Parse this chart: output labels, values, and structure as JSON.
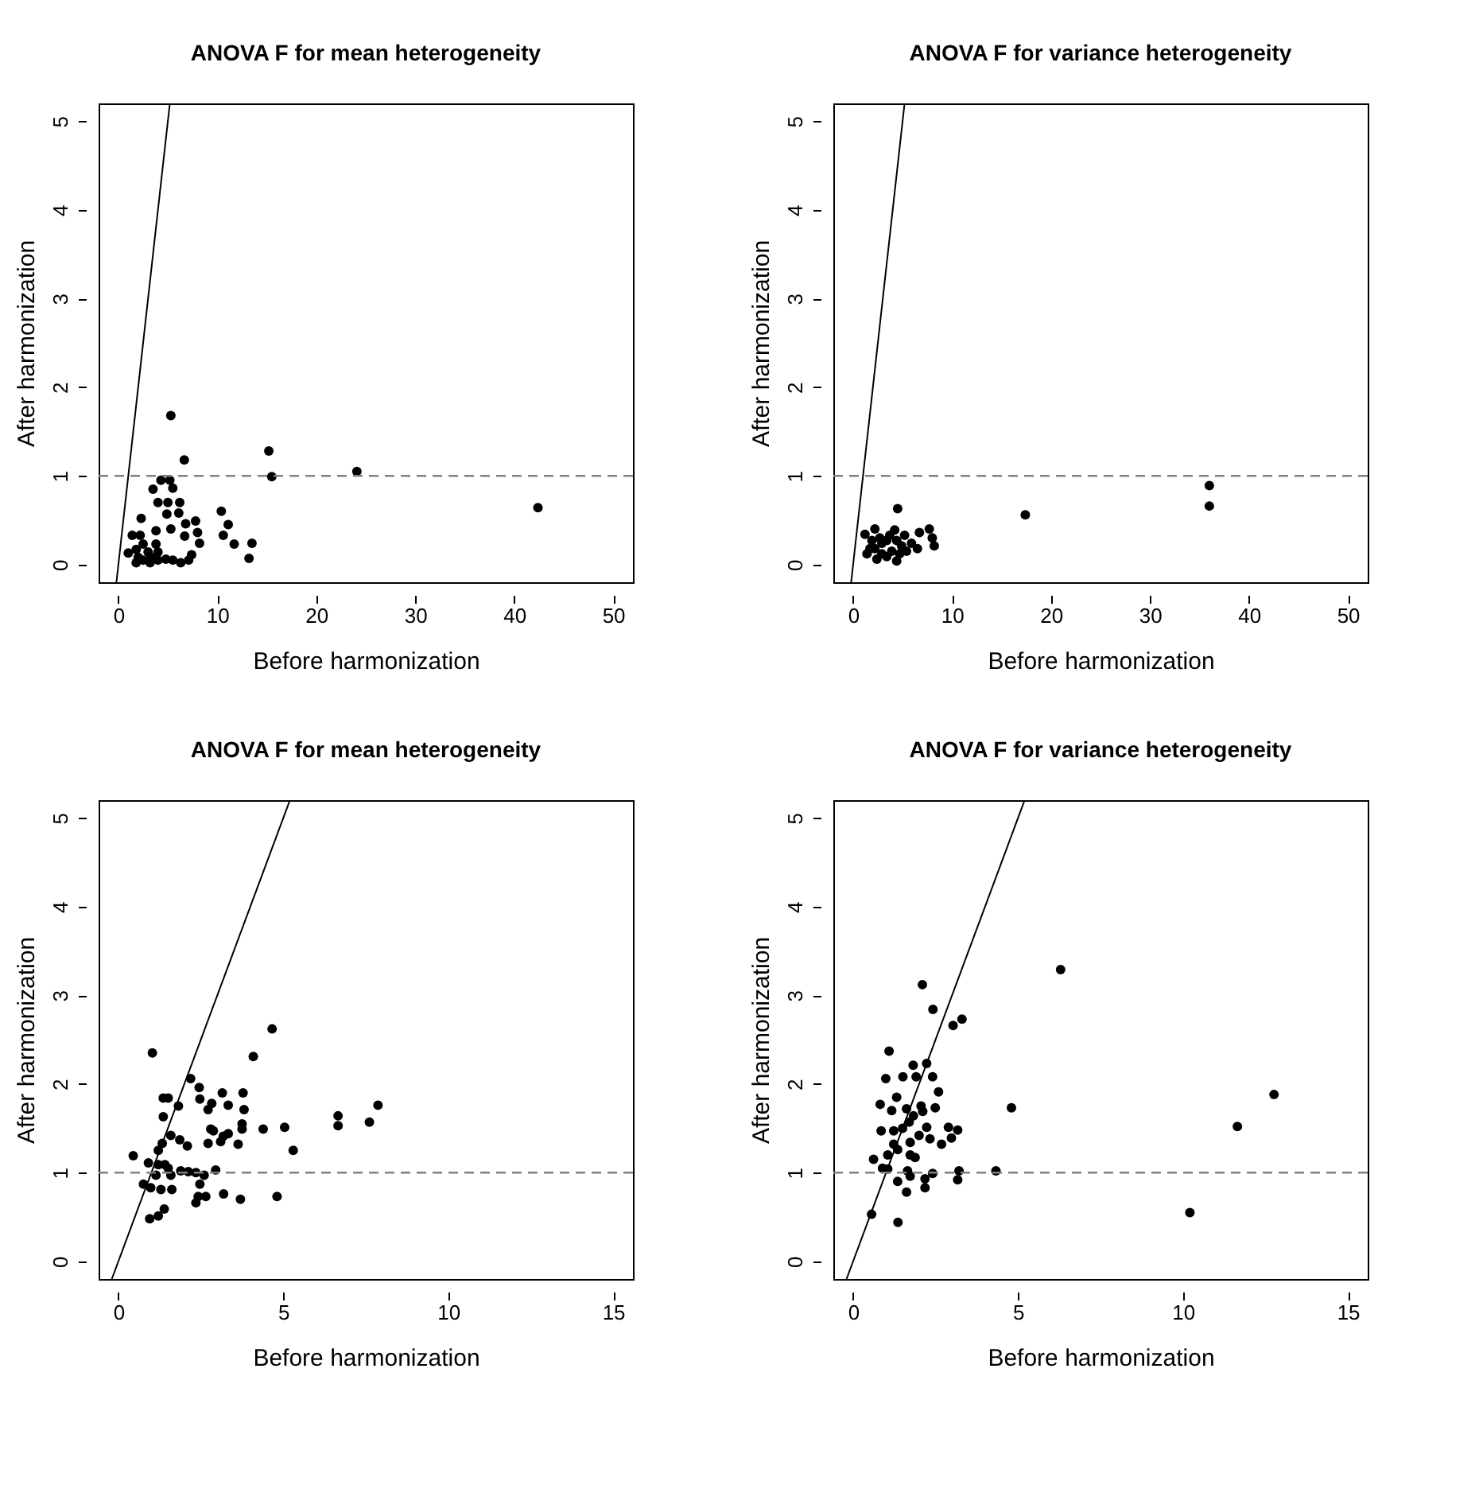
{
  "chart_data": [
    {
      "type": "scatter",
      "title": "ANOVA F for mean heterogeneity",
      "xlabel": "Before harmonization",
      "ylabel": "After harmonization",
      "xlim": [
        -2,
        52
      ],
      "ylim": [
        -0.2,
        5.2
      ],
      "xticks": [
        0,
        10,
        20,
        30,
        40,
        50
      ],
      "yticks": [
        0,
        1,
        2,
        3,
        4,
        5
      ],
      "grid": false,
      "series": [
        {
          "type": "scatter",
          "marker": "circle",
          "color": "#000000",
          "x": [
            5.3,
            6.66,
            15.2,
            15.5,
            24.1,
            42.4,
            10.4,
            10.6,
            11.1,
            11.7,
            13.5,
            13.2,
            4.3,
            5.2,
            3.5,
            5.5,
            4.0,
            5.0,
            6.2,
            4.9,
            6.1,
            6.8,
            7.8,
            5.3,
            6.7,
            8.0,
            8.2,
            2.3,
            3.8,
            1.4,
            2.2,
            1.0,
            1.8,
            2.5,
            3.0,
            3.8,
            1.8,
            2.5,
            3.2,
            4.0,
            4.8,
            5.5,
            6.3,
            7.1,
            7.4,
            2.0,
            3.3,
            4.0
          ],
          "values": [
            1.68,
            1.18,
            1.28,
            0.99,
            1.05,
            0.64,
            0.6,
            0.33,
            0.45,
            0.23,
            0.24,
            0.07,
            0.95,
            0.95,
            0.85,
            0.86,
            0.7,
            0.7,
            0.7,
            0.57,
            0.58,
            0.46,
            0.49,
            0.4,
            0.32,
            0.36,
            0.24,
            0.52,
            0.38,
            0.33,
            0.33,
            0.13,
            0.17,
            0.23,
            0.14,
            0.23,
            0.02,
            0.05,
            0.02,
            0.05,
            0.06,
            0.05,
            0.02,
            0.05,
            0.11,
            0.08,
            0.08,
            0.14
          ]
        },
        {
          "type": "line",
          "marker": "none",
          "color": "#000000",
          "x": [
            -0.2,
            5.2
          ],
          "values": [
            -0.2,
            5.2
          ]
        }
      ],
      "ref_lines": [
        {
          "axis": "y",
          "value": 1,
          "color": "#808080",
          "line_style": "dashed"
        }
      ]
    },
    {
      "type": "scatter",
      "title": "ANOVA F for variance heterogeneity",
      "xlabel": "Before harmonization",
      "ylabel": "After harmonization",
      "xlim": [
        -2,
        52
      ],
      "ylim": [
        -0.2,
        5.2
      ],
      "xticks": [
        0,
        10,
        20,
        30,
        40,
        50
      ],
      "yticks": [
        0,
        1,
        2,
        3,
        4,
        5
      ],
      "grid": false,
      "series": [
        {
          "type": "scatter",
          "marker": "circle",
          "color": "#000000",
          "x": [
            4.5,
            17.4,
            36.0,
            36.0,
            7.7,
            8.2,
            8.0,
            6.7,
            2.2,
            1.2,
            1.4,
            2.2,
            2.9,
            3.7,
            4.4,
            5.2,
            5.9,
            6.5,
            2.4,
            3.4,
            4.4,
            3.9,
            2.9,
            5.4,
            4.9,
            1.9,
            3.4,
            2.7,
            4.2,
            1.7,
            4.7
          ],
          "values": [
            0.63,
            0.56,
            0.89,
            0.66,
            0.4,
            0.21,
            0.3,
            0.36,
            0.4,
            0.34,
            0.12,
            0.18,
            0.24,
            0.33,
            0.27,
            0.33,
            0.24,
            0.18,
            0.06,
            0.09,
            0.04,
            0.15,
            0.12,
            0.15,
            0.21,
            0.27,
            0.27,
            0.3,
            0.39,
            0.18,
            0.12
          ]
        },
        {
          "type": "line",
          "marker": "none",
          "color": "#000000",
          "x": [
            -0.2,
            5.2
          ],
          "values": [
            -0.2,
            5.2
          ]
        }
      ],
      "ref_lines": [
        {
          "axis": "y",
          "value": 1,
          "color": "#808080",
          "line_style": "dashed"
        }
      ]
    },
    {
      "type": "scatter",
      "title": "ANOVA F for mean heterogeneity",
      "xlabel": "Before harmonization",
      "ylabel": "After harmonization",
      "xlim": [
        -0.6,
        15.6
      ],
      "ylim": [
        -0.2,
        5.2
      ],
      "xticks": [
        0,
        5,
        10,
        15
      ],
      "yticks": [
        0,
        1,
        2,
        3,
        4,
        5
      ],
      "grid": false,
      "series": [
        {
          "type": "scatter",
          "marker": "circle",
          "color": "#000000",
          "x": [
            1.03,
            4.66,
            4.09,
            2.19,
            2.45,
            2.47,
            3.15,
            3.78,
            2.83,
            3.33,
            3.81,
            1.36,
            1.51,
            1.82,
            1.36,
            2.72,
            2.8,
            2.88,
            3.33,
            3.18,
            3.1,
            2.72,
            3.63,
            3.75,
            3.75,
            4.39,
            5.04,
            5.3,
            6.66,
            6.66,
            7.61,
            7.87,
            1.59,
            1.86,
            2.09,
            1.33,
            1.21,
            0.45,
            0.91,
            1.21,
            1.41,
            1.51,
            1.59,
            1.14,
            1.89,
            2.12,
            2.35,
            2.6,
            2.95,
            2.47,
            0.76,
            0.98,
            1.29,
            1.62,
            2.65,
            2.42,
            2.35,
            3.19,
            3.7,
            4.81,
            0.95,
            1.21,
            1.39
          ],
          "values": [
            2.35,
            2.62,
            2.31,
            2.06,
            1.96,
            1.83,
            1.9,
            1.9,
            1.78,
            1.76,
            1.71,
            1.84,
            1.84,
            1.75,
            1.63,
            1.71,
            1.49,
            1.47,
            1.44,
            1.41,
            1.35,
            1.33,
            1.32,
            1.55,
            1.49,
            1.49,
            1.51,
            1.25,
            1.64,
            1.53,
            1.57,
            1.76,
            1.42,
            1.37,
            1.3,
            1.33,
            1.25,
            1.19,
            1.11,
            1.09,
            1.09,
            1.05,
            0.97,
            0.97,
            1.02,
            1.01,
            1.0,
            0.97,
            1.03,
            0.87,
            0.87,
            0.83,
            0.81,
            0.81,
            0.73,
            0.73,
            0.66,
            0.76,
            0.7,
            0.73,
            0.48,
            0.51,
            0.59
          ]
        },
        {
          "type": "line",
          "marker": "none",
          "color": "#000000",
          "x": [
            -0.2,
            5.2
          ],
          "values": [
            -0.2,
            5.2
          ]
        }
      ],
      "ref_lines": [
        {
          "axis": "y",
          "value": 1,
          "color": "#808080",
          "line_style": "dashed"
        }
      ]
    },
    {
      "type": "scatter",
      "title": "ANOVA F for variance heterogeneity",
      "xlabel": "Before harmonization",
      "ylabel": "After harmonization",
      "xlim": [
        -0.6,
        15.6
      ],
      "ylim": [
        -0.2,
        5.2
      ],
      "xticks": [
        0,
        5,
        10,
        15
      ],
      "yticks": [
        0,
        1,
        2,
        3,
        4,
        5
      ],
      "grid": false,
      "series": [
        {
          "type": "scatter",
          "marker": "circle",
          "color": "#000000",
          "x": [
            2.1,
            6.29,
            2.42,
            3.03,
            3.3,
            1.09,
            1.82,
            2.23,
            0.99,
            1.51,
            1.91,
            2.41,
            2.59,
            1.32,
            0.82,
            1.17,
            1.62,
            2.06,
            2.11,
            2.49,
            1.83,
            1.7,
            4.8,
            11.65,
            12.76,
            0.85,
            1.23,
            1.5,
            2.23,
            2.89,
            3.17,
            2.0,
            2.98,
            2.33,
            1.23,
            1.35,
            1.73,
            2.68,
            0.62,
            1.05,
            1.73,
            1.88,
            0.89,
            1.05,
            1.65,
            1.73,
            2.41,
            3.21,
            4.33,
            1.35,
            2.18,
            3.17,
            1.62,
            2.18,
            0.56,
            1.36,
            10.21
          ],
          "values": [
            3.12,
            3.29,
            2.84,
            2.66,
            2.73,
            2.37,
            2.21,
            2.23,
            2.06,
            2.08,
            2.08,
            2.08,
            1.91,
            1.85,
            1.77,
            1.7,
            1.72,
            1.75,
            1.69,
            1.73,
            1.64,
            1.57,
            1.73,
            1.52,
            1.88,
            1.47,
            1.47,
            1.5,
            1.51,
            1.51,
            1.48,
            1.42,
            1.39,
            1.38,
            1.32,
            1.26,
            1.34,
            1.32,
            1.15,
            1.2,
            1.2,
            1.17,
            1.05,
            1.04,
            1.02,
            0.96,
            0.99,
            1.02,
            1.02,
            0.9,
            0.93,
            0.92,
            0.78,
            0.83,
            0.53,
            0.44,
            0.55
          ]
        },
        {
          "type": "line",
          "marker": "none",
          "color": "#000000",
          "x": [
            -0.2,
            5.2
          ],
          "values": [
            -0.2,
            5.2
          ]
        }
      ],
      "ref_lines": [
        {
          "axis": "y",
          "value": 1,
          "color": "#808080",
          "line_style": "dashed"
        }
      ]
    }
  ]
}
